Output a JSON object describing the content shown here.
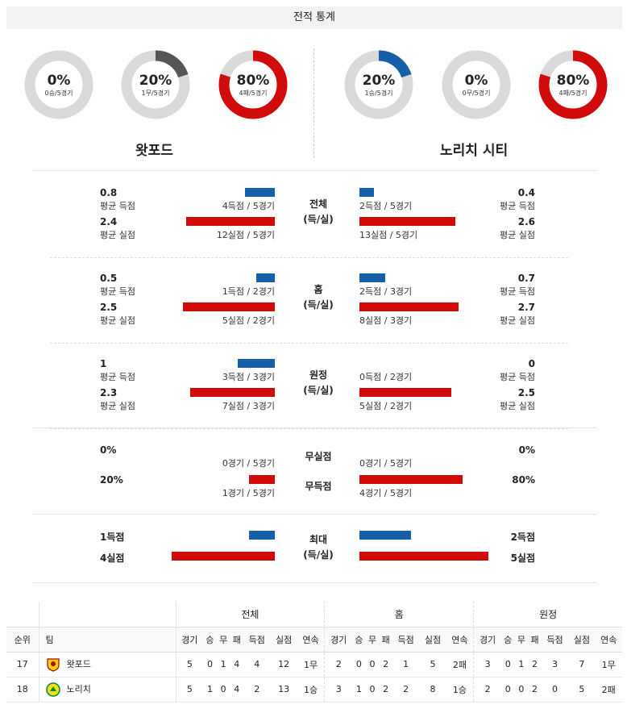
{
  "title": "전적 통계",
  "home": {
    "name": "왓포드",
    "donuts": [
      {
        "pct": "0%",
        "sub": "0승/5경기",
        "value": 0,
        "color": "#1560a8"
      },
      {
        "pct": "20%",
        "sub": "1무/5경기",
        "value": 0.2,
        "color": "#555555"
      },
      {
        "pct": "80%",
        "sub": "4패/5경기",
        "value": 0.8,
        "color": "#d10a0a"
      }
    ]
  },
  "away": {
    "name": "노리치 시티",
    "donuts": [
      {
        "pct": "20%",
        "sub": "1승/5경기",
        "value": 0.2,
        "color": "#1560a8"
      },
      {
        "pct": "0%",
        "sub": "0무/5경기",
        "value": 0,
        "color": "#555555"
      },
      {
        "pct": "80%",
        "sub": "4패/5경기",
        "value": 0.8,
        "color": "#d10a0a"
      }
    ]
  },
  "sections": [
    {
      "label": [
        "전체",
        "(득/실)"
      ],
      "home": [
        {
          "num": "0.8",
          "lbl": "평균 득점",
          "cap": "4득점 / 5경기",
          "value": 0.8
        },
        {
          "num": "2.4",
          "lbl": "평균 실점",
          "cap": "12실점 / 5경기",
          "value": 2.4
        }
      ],
      "away": [
        {
          "num": "0.4",
          "lbl": "평균 득점",
          "cap": "2득점 / 5경기",
          "value": 0.4
        },
        {
          "num": "2.6",
          "lbl": "평균 실점",
          "cap": "13실점 / 5경기",
          "value": 2.6
        }
      ]
    },
    {
      "label": [
        "홈",
        "(득/실)"
      ],
      "home": [
        {
          "num": "0.5",
          "lbl": "평균 득점",
          "cap": "1득점 / 2경기",
          "value": 0.5
        },
        {
          "num": "2.5",
          "lbl": "평균 실점",
          "cap": "5실점 / 2경기",
          "value": 2.5
        }
      ],
      "away": [
        {
          "num": "0.7",
          "lbl": "평균 득점",
          "cap": "2득점 / 3경기",
          "value": 0.7
        },
        {
          "num": "2.7",
          "lbl": "평균 실점",
          "cap": "8실점 / 3경기",
          "value": 2.7
        }
      ]
    },
    {
      "label": [
        "원정",
        "(득/실)"
      ],
      "home": [
        {
          "num": "1",
          "lbl": "평균 득점",
          "cap": "3득점 / 3경기",
          "value": 1
        },
        {
          "num": "2.3",
          "lbl": "평균 실점",
          "cap": "7실점 / 3경기",
          "value": 2.3
        }
      ],
      "away": [
        {
          "num": "0",
          "lbl": "평균 득점",
          "cap": "0득점 / 2경기",
          "value": 0
        },
        {
          "num": "2.5",
          "lbl": "평균 실점",
          "cap": "5실점 / 2경기",
          "value": 2.5
        }
      ]
    }
  ],
  "clean": {
    "label1": "무실점",
    "label2": "무득점",
    "home": [
      {
        "num": "0%",
        "cap": "0경기 / 5경기",
        "value": 0
      },
      {
        "num": "20%",
        "cap": "1경기 / 5경기",
        "value": 0.2
      }
    ],
    "away": [
      {
        "num": "0%",
        "cap": "0경기 / 5경기",
        "value": 0
      },
      {
        "num": "80%",
        "cap": "4경기 / 5경기",
        "value": 0.8
      }
    ]
  },
  "max": {
    "label": [
      "최대",
      "(득/실)"
    ],
    "home": [
      {
        "num": "1득점",
        "value": 1
      },
      {
        "num": "4실점",
        "value": 4
      }
    ],
    "away": [
      {
        "num": "2득점",
        "value": 2
      },
      {
        "num": "5실점",
        "value": 5
      }
    ]
  },
  "table": {
    "groups": [
      "전체",
      "홈",
      "원정"
    ],
    "rank_header": "순위",
    "team_header": "팀",
    "cols": [
      "경기",
      "승",
      "무",
      "패",
      "득점",
      "실점",
      "연속"
    ],
    "rows": [
      {
        "rank": "17",
        "team": "왓포드",
        "badge": "watford-badge-icon",
        "total": [
          "5",
          "0",
          "1",
          "4",
          "4",
          "12",
          "1무"
        ],
        "home": [
          "2",
          "0",
          "0",
          "2",
          "1",
          "5",
          "2패"
        ],
        "away": [
          "3",
          "0",
          "1",
          "2",
          "3",
          "7",
          "1무"
        ]
      },
      {
        "rank": "18",
        "team": "노리치",
        "badge": "norwich-badge-icon",
        "total": [
          "5",
          "1",
          "0",
          "4",
          "2",
          "13",
          "1승"
        ],
        "home": [
          "3",
          "1",
          "0",
          "2",
          "2",
          "8",
          "1승"
        ],
        "away": [
          "2",
          "0",
          "0",
          "2",
          "0",
          "5",
          "2패"
        ]
      }
    ]
  }
}
